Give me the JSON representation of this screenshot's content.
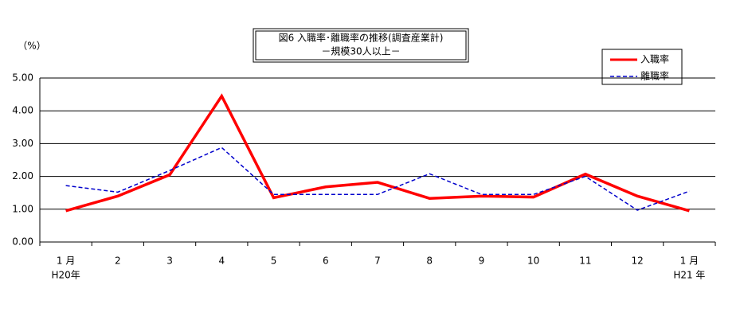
{
  "chart_data": {
    "type": "line",
    "title": "図6  入職率･離職率の推移(調査産業計)",
    "subtitle": "－規模30人以上－",
    "y_label": "（%）",
    "categories": [
      "1 月",
      "2",
      "3",
      "4",
      "5",
      "6",
      "7",
      "8",
      "9",
      "10",
      "11",
      "12",
      "1 月"
    ],
    "category_sublabels": [
      "H20年",
      null,
      null,
      null,
      null,
      null,
      null,
      null,
      null,
      null,
      null,
      null,
      "H21 年"
    ],
    "series": [
      {
        "name": "入職率",
        "color": "#ff0000",
        "dashed": false,
        "values": [
          0.95,
          1.4,
          2.05,
          4.45,
          1.35,
          1.68,
          1.82,
          1.33,
          1.4,
          1.37,
          2.07,
          1.4,
          0.95
        ]
      },
      {
        "name": "離職率",
        "color": "#0000cc",
        "dashed": true,
        "values": [
          1.72,
          1.52,
          2.18,
          2.88,
          1.45,
          1.45,
          1.45,
          2.08,
          1.45,
          1.45,
          2.0,
          0.97,
          1.55
        ]
      }
    ],
    "ylim": [
      0,
      5
    ],
    "yticks": [
      {
        "value": 0,
        "label": "0.00"
      },
      {
        "value": 1,
        "label": "1.00"
      },
      {
        "value": 2,
        "label": "2.00"
      },
      {
        "value": 3,
        "label": "3.00"
      },
      {
        "value": 4,
        "label": "4.00"
      },
      {
        "value": 5,
        "label": "5.00"
      }
    ],
    "grid": true,
    "legend": "upper right"
  }
}
